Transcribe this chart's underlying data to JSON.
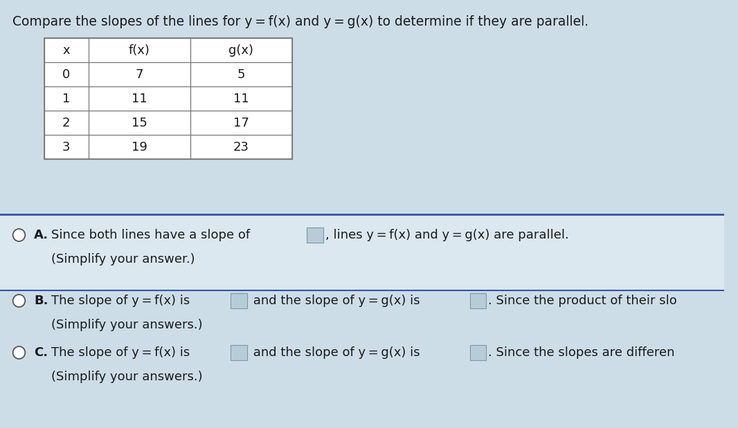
{
  "title": "Compare the slopes of the lines for y = f(x) and y = g(x) to determine if they are parallel.",
  "table_headers": [
    "x",
    "f(x)",
    "g(x)"
  ],
  "table_rows": [
    [
      "0",
      "7",
      "5"
    ],
    [
      "1",
      "11",
      "11"
    ],
    [
      "2",
      "15",
      "17"
    ],
    [
      "3",
      "19",
      "23"
    ]
  ],
  "bg_color": "#cddde8",
  "white_color": "#ffffff",
  "opt_a_bg": "#dce8f0",
  "text_color": "#1a1a1a",
  "border_color": "#777777",
  "divider_color": "#3355aa",
  "radio_edge": "#555555",
  "box_fill": "#b8ccd8",
  "box_edge": "#7799aa",
  "font_size_title": 13.5,
  "font_size_table": 13,
  "font_size_opt": 13,
  "option_A_line1": "Since both lines have a slope of",
  "option_A_line1b": ", lines y = f(x) and y = g(x) are parallel.",
  "option_A_line2": "(Simplify your answer.)",
  "option_B_line1a": "The slope of y = f(x) is",
  "option_B_line1b": "and the slope of y = g(x) is",
  "option_B_line1c": ". Since the product of their slo",
  "option_B_line2": "(Simplify your answers.)",
  "option_C_line1a": "The slope of y = f(x) is",
  "option_C_line1b": "and the slope of y = g(x) is",
  "option_C_line1c": ". Since the slopes are differen",
  "option_C_line2": "(Simplify your answers.)"
}
